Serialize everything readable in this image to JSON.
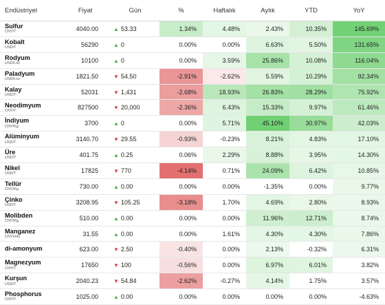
{
  "headers": {
    "name": "Endüstriyel",
    "price": "Fiyat",
    "day": "Gün",
    "pct": "%",
    "weekly": "Haftalık",
    "monthly": "Aylık",
    "ytd": "YTD",
    "yoy": "YoY"
  },
  "rows": [
    {
      "name": "Sulfur",
      "unit": "CNY/T",
      "price": "4040.00",
      "dir": "up",
      "day": "53.33",
      "pct": "1.34%",
      "weekly": "4.48%",
      "monthly": "2.43%",
      "ytd": "10.35%",
      "yoy": "145.69%"
    },
    {
      "name": "Kobalt",
      "unit": "USD/T",
      "price": "56290",
      "dir": "up",
      "day": "0",
      "pct": "0.00%",
      "weekly": "0.00%",
      "monthly": "6.63%",
      "ytd": "5.50%",
      "yoy": "131.65%"
    },
    {
      "name": "Rodyum",
      "unit": "USD/t.oz",
      "price": "10100",
      "dir": "up",
      "day": "0",
      "pct": "0.00%",
      "weekly": "3.59%",
      "monthly": "25.86%",
      "ytd": "10.08%",
      "yoy": "116.04%"
    },
    {
      "name": "Paladyum",
      "unit": "USD/t.oz",
      "price": "1821.50",
      "dir": "down",
      "day": "54.50",
      "pct": "-2.91%",
      "weekly": "-2.62%",
      "monthly": "5.59%",
      "ytd": "10.29%",
      "yoy": "92.34%"
    },
    {
      "name": "Kalay",
      "unit": "USD/T",
      "price": "52031",
      "dir": "down",
      "day": "1,431",
      "pct": "-2.68%",
      "weekly": "18.93%",
      "monthly": "26.83%",
      "ytd": "28.29%",
      "yoy": "75.92%"
    },
    {
      "name": "Neodimyum",
      "unit": "CNY/T",
      "price": "827500",
      "dir": "down",
      "day": "20,000",
      "pct": "-2.36%",
      "weekly": "6.43%",
      "monthly": "15.33%",
      "ytd": "9.97%",
      "yoy": "61.46%"
    },
    {
      "name": "İndiyum",
      "unit": "CNY/Kg",
      "price": "3700",
      "dir": "up",
      "day": "0",
      "pct": "0.00%",
      "weekly": "5.71%",
      "monthly": "45.10%",
      "ytd": "30.97%",
      "yoy": "42.03%"
    },
    {
      "name": "Alüminyum",
      "unit": "USD/T",
      "price": "3140.70",
      "dir": "down",
      "day": "29.55",
      "pct": "-0.93%",
      "weekly": "-0.23%",
      "monthly": "8.21%",
      "ytd": "4.83%",
      "yoy": "17.10%"
    },
    {
      "name": "Üre",
      "unit": "USD/T",
      "price": "401.75",
      "dir": "up",
      "day": "0.25",
      "pct": "0.06%",
      "weekly": "2.29%",
      "monthly": "8.88%",
      "ytd": "3.95%",
      "yoy": "14.30%"
    },
    {
      "name": "Nikel",
      "unit": "USD/T",
      "price": "17825",
      "dir": "down",
      "day": "770",
      "pct": "-4.14%",
      "weekly": "0.71%",
      "monthly": "24.09%",
      "ytd": "6.42%",
      "yoy": "10.85%"
    },
    {
      "name": "Tellür",
      "unit": "CNY/Kg",
      "price": "730.00",
      "dir": "up",
      "day": "0.00",
      "pct": "0.00%",
      "weekly": "0.00%",
      "monthly": "-1.35%",
      "ytd": "0.00%",
      "yoy": "9.77%"
    },
    {
      "name": "Çinko",
      "unit": "USD/T",
      "price": "3208.95",
      "dir": "down",
      "day": "105.25",
      "pct": "-3.18%",
      "weekly": "1.70%",
      "monthly": "4.69%",
      "ytd": "2.80%",
      "yoy": "8.93%"
    },
    {
      "name": "Molibden",
      "unit": "CNY/Kg",
      "price": "510.00",
      "dir": "up",
      "day": "0.00",
      "pct": "0.00%",
      "weekly": "0.00%",
      "monthly": "11.96%",
      "ytd": "12.71%",
      "yoy": "8.74%"
    },
    {
      "name": "Manganez",
      "unit": "CNY/mtu",
      "price": "31.55",
      "dir": "up",
      "day": "0.00",
      "pct": "0.00%",
      "weekly": "1.61%",
      "monthly": "4.30%",
      "ytd": "4.30%",
      "yoy": "7.86%"
    },
    {
      "name": "di-amonyum",
      "unit": "",
      "price": "623.00",
      "dir": "down",
      "day": "2.50",
      "pct": "-0.40%",
      "weekly": "0.00%",
      "monthly": "2.13%",
      "ytd": "-0.32%",
      "yoy": "6.31%"
    },
    {
      "name": "Magnezyum",
      "unit": "CNY/T",
      "price": "17650",
      "dir": "down",
      "day": "100",
      "pct": "-0.56%",
      "weekly": "0.00%",
      "monthly": "6.97%",
      "ytd": "6.01%",
      "yoy": "3.82%"
    },
    {
      "name": "Kurşun",
      "unit": "USD/T",
      "price": "2040.23",
      "dir": "down",
      "day": "54.84",
      "pct": "-2.62%",
      "weekly": "-0.27%",
      "monthly": "4.14%",
      "ytd": "1.75%",
      "yoy": "3.57%"
    },
    {
      "name": "Phosphorus",
      "unit": "CNY/T",
      "price": "1025.00",
      "dir": "up",
      "day": "0.00",
      "pct": "0.00%",
      "weekly": "0.00%",
      "monthly": "0.00%",
      "ytd": "0.00%",
      "yoy": "-4.63%"
    }
  ],
  "colors": {
    "up_arrow": "#49ad49",
    "down_arrow": "#d14040",
    "green_strong": "#69cf6c",
    "red_strong": "#e06464"
  }
}
